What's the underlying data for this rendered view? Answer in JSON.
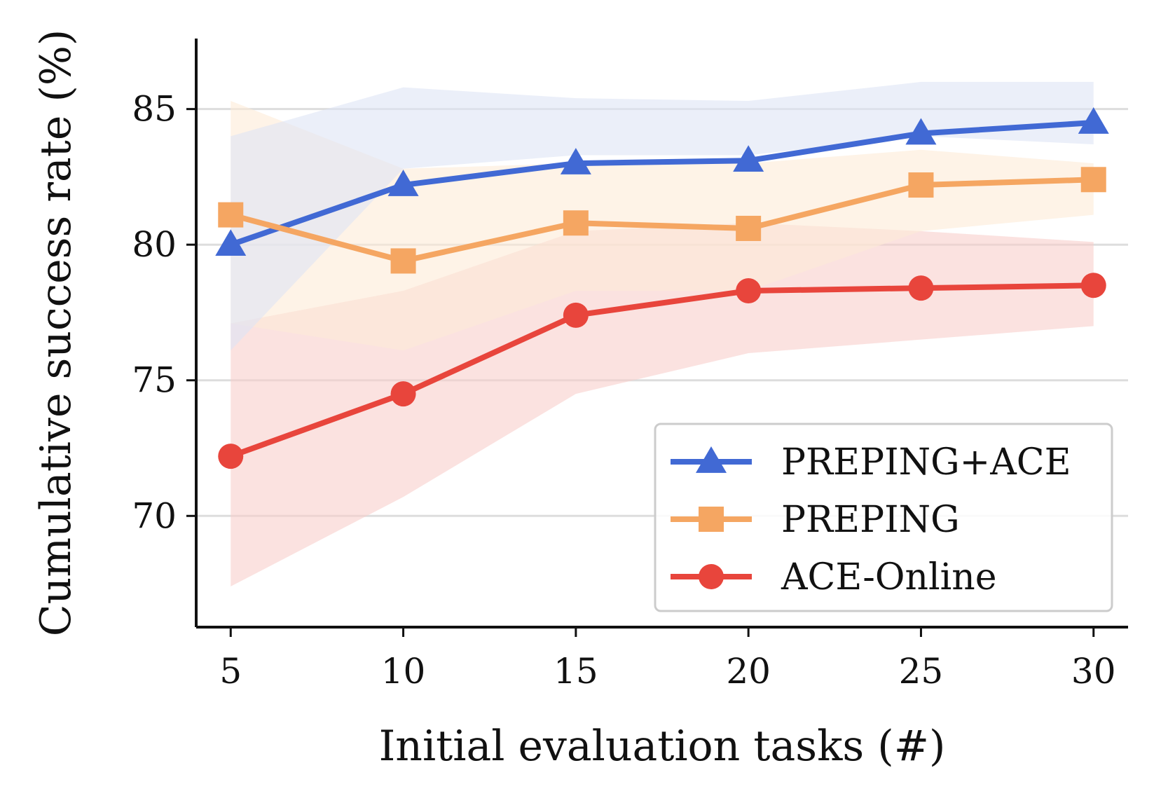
{
  "chart_data": {
    "type": "line",
    "xlabel": "Initial evaluation tasks (#)",
    "ylabel": "Cumulative success rate (%)",
    "x": [
      5,
      10,
      15,
      20,
      25,
      30
    ],
    "xlim": [
      4,
      31
    ],
    "ylim": [
      65.9,
      87.6
    ],
    "xticks": [
      "5",
      "10",
      "15",
      "20",
      "25",
      "30"
    ],
    "yticks": [
      "70",
      "75",
      "80",
      "85"
    ],
    "grid": "horizontal",
    "legend": "bottom-right",
    "series": [
      {
        "name": "PREPING+ACE",
        "marker": "triangle",
        "color": "#4169d4",
        "band_color": "#dde4f5",
        "values": [
          80.0,
          82.2,
          83.0,
          83.1,
          84.1,
          84.5
        ],
        "upper": [
          84.0,
          85.8,
          85.4,
          85.3,
          86.0,
          86.0
        ],
        "lower": [
          76.1,
          82.8,
          83.3,
          83.3,
          84.0,
          83.7
        ]
      },
      {
        "name": "PREPING",
        "marker": "square",
        "color": "#f5a662",
        "band_color": "#fdebd7",
        "values": [
          81.1,
          79.4,
          80.8,
          80.6,
          82.2,
          82.4
        ],
        "upper": [
          85.3,
          82.8,
          83.0,
          83.0,
          83.5,
          83.0
        ],
        "lower": [
          77.1,
          76.1,
          78.3,
          78.3,
          80.5,
          81.1
        ]
      },
      {
        "name": "ACE-Online",
        "marker": "circle",
        "color": "#e8453c",
        "band_color": "#f8cfcc",
        "values": [
          72.2,
          74.5,
          77.4,
          78.3,
          78.4,
          78.5
        ],
        "upper": [
          77.1,
          78.3,
          80.5,
          80.8,
          80.5,
          80.1
        ],
        "lower": [
          67.4,
          70.7,
          74.5,
          76.0,
          76.5,
          77.0
        ]
      }
    ]
  }
}
